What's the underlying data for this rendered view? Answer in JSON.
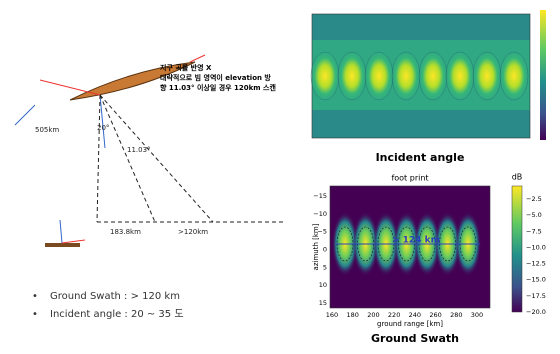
{
  "diagram": {
    "note": [
      "지구 곡률 반영 X",
      "대략적으로 빔 영역이 elevation 방",
      "향 11.03° 이상일 경우 120km 스캔"
    ],
    "labels": {
      "altitude": "505km",
      "angle1": "20°",
      "angle2": "11.03°",
      "near": "183.8km",
      "swath": ">120km"
    },
    "bullets": [
      "Ground Swath : > 120 km",
      "Incident angle :  20 ~ 35 도"
    ]
  },
  "top_plot": {
    "caption": "Incident angle"
  },
  "bottom_plot": {
    "title": "foot print",
    "caption": "Ground Swath",
    "xlabel": "ground range [km]",
    "ylabel": "azimuth [km]",
    "annotation": "> 124 km",
    "colorbar_label": "dB",
    "xticks": [
      "160",
      "180",
      "200",
      "220",
      "240",
      "260",
      "280",
      "300"
    ],
    "yticks": [
      "−15",
      "−10",
      "−5",
      "0",
      "5",
      "10",
      "15"
    ],
    "cticks": [
      "−2.5",
      "−5.0",
      "−7.5",
      "−10.0",
      "−12.5",
      "−15.0",
      "−17.5",
      "−20.0"
    ]
  }
}
